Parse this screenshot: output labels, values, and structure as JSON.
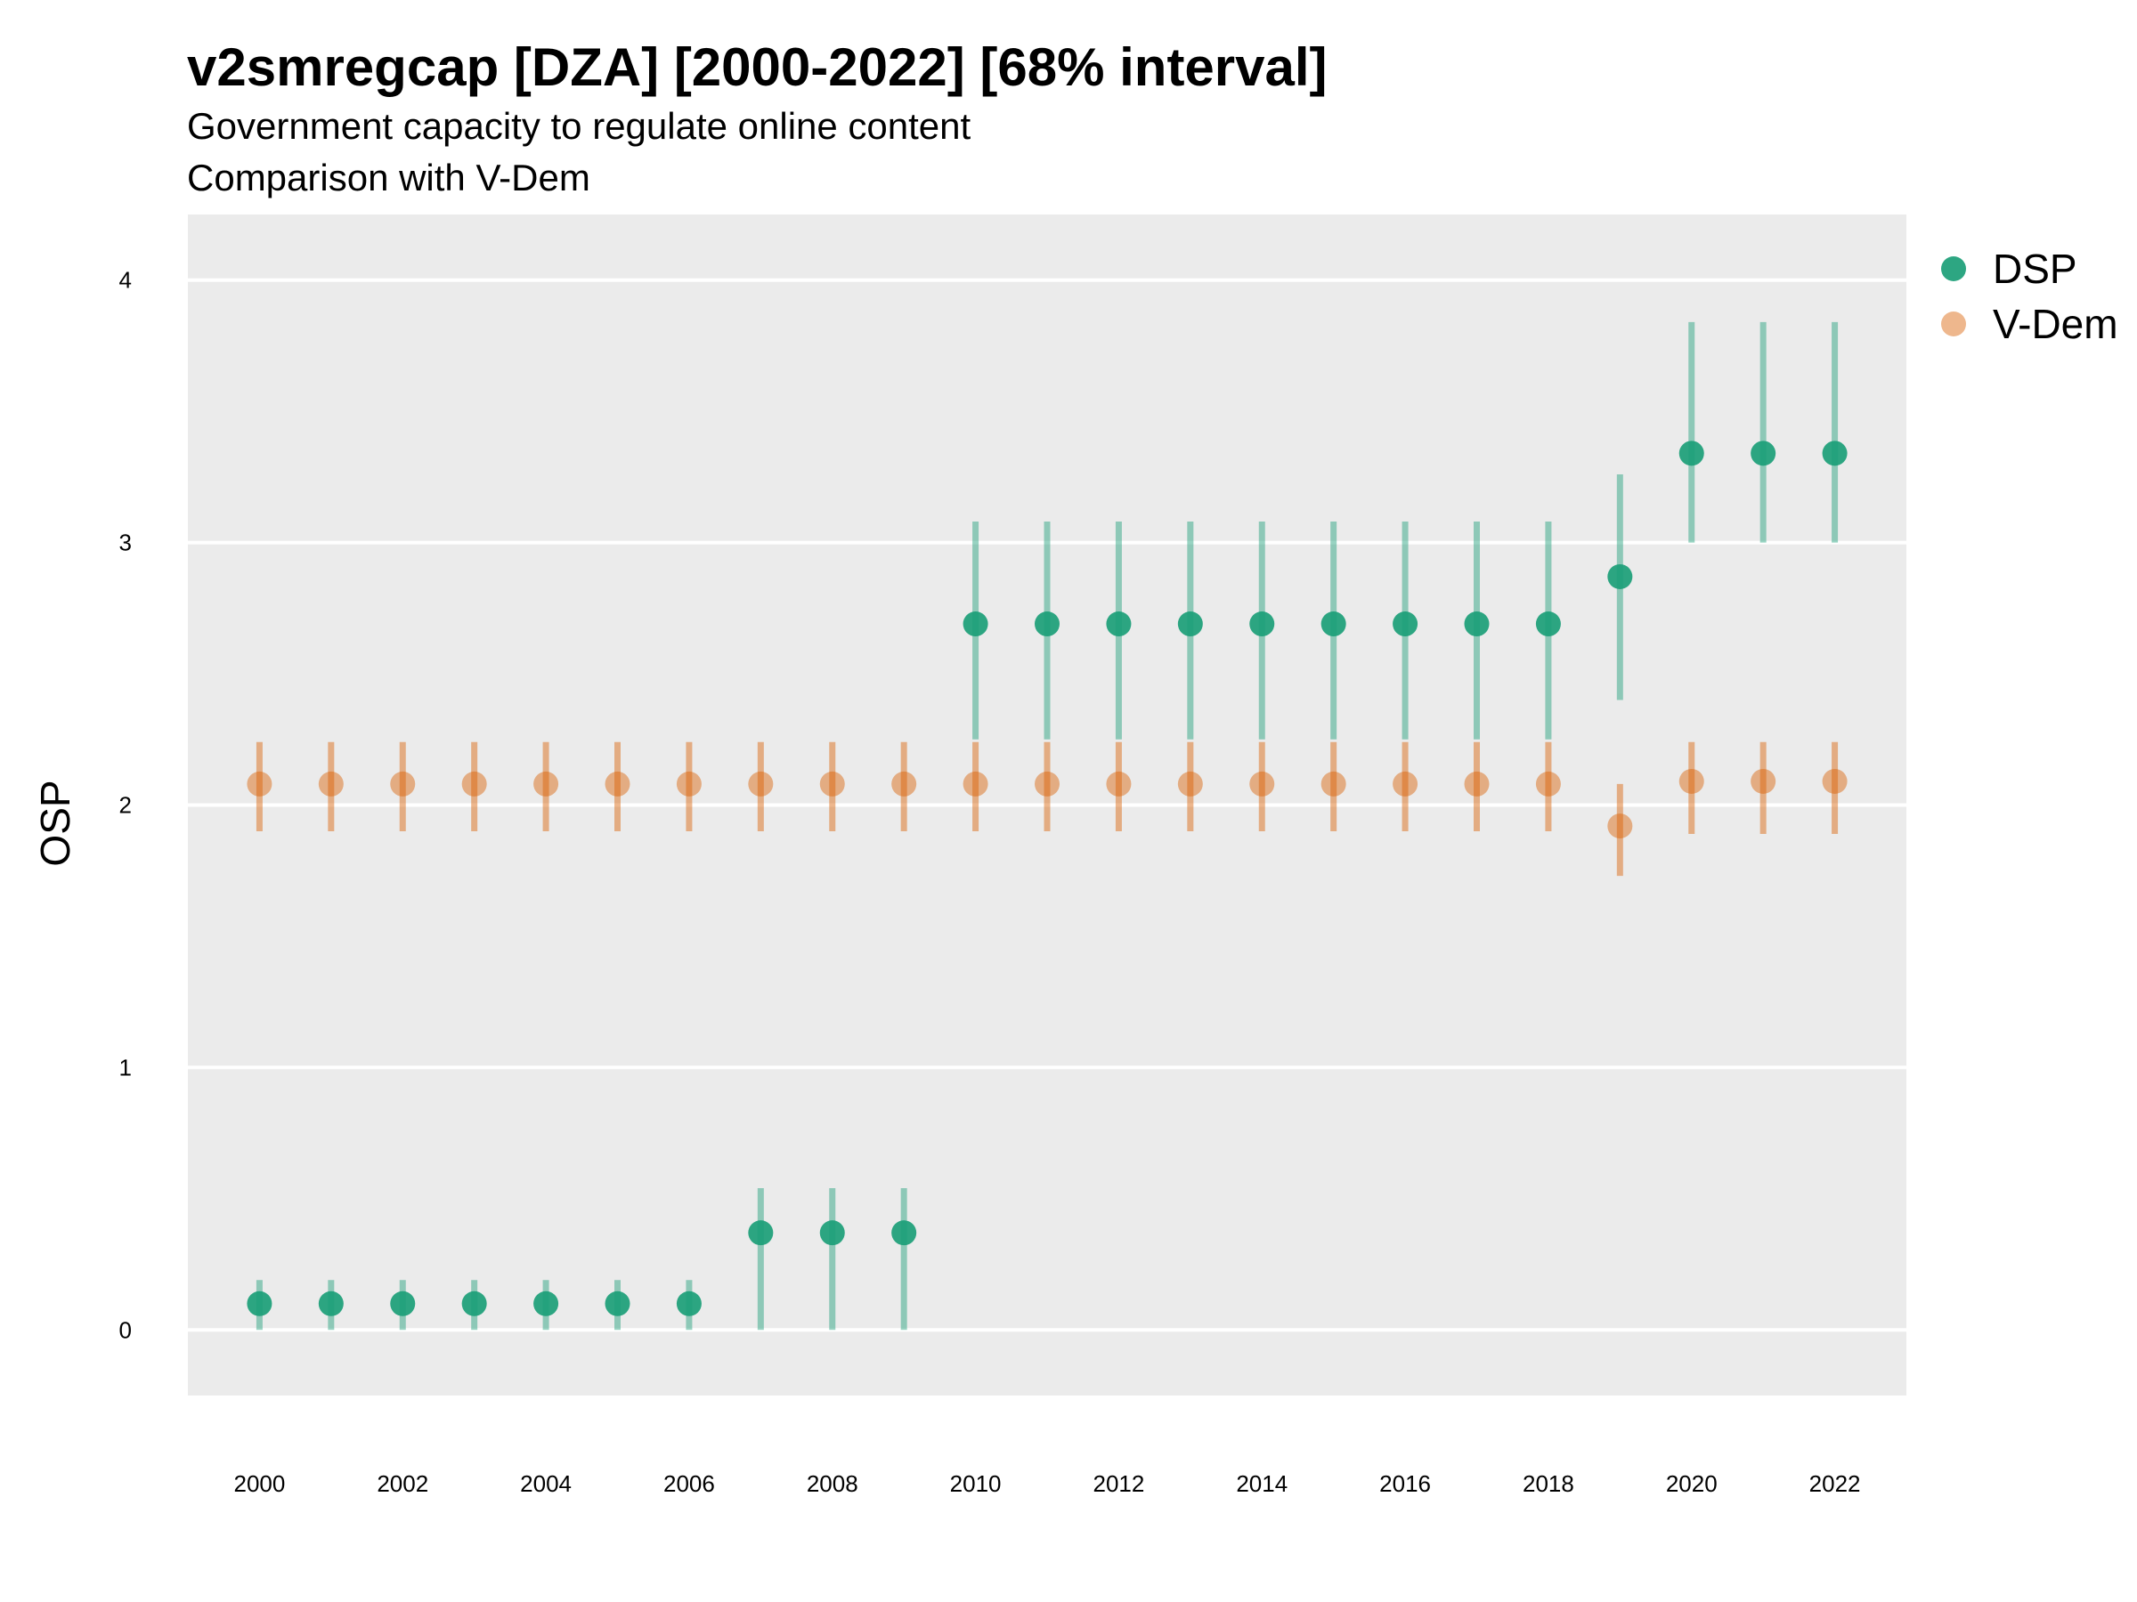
{
  "chart_data": {
    "type": "scatter",
    "title": "v2smregcap [DZA] [2000-2022] [68% interval]",
    "subtitle": "Government capacity to regulate online content",
    "subtitle2": "Comparison with V-Dem",
    "ylabel": "OSP",
    "xlabel": "",
    "x": [
      2000,
      2001,
      2002,
      2003,
      2004,
      2005,
      2006,
      2007,
      2008,
      2009,
      2010,
      2011,
      2012,
      2013,
      2014,
      2015,
      2016,
      2017,
      2018,
      2019,
      2020,
      2021,
      2022
    ],
    "x_ticks": [
      "2000",
      "2002",
      "2004",
      "2006",
      "2008",
      "2010",
      "2012",
      "2014",
      "2016",
      "2018",
      "2020",
      "2022"
    ],
    "x_tick_values": [
      2000,
      2002,
      2004,
      2006,
      2008,
      2010,
      2012,
      2014,
      2016,
      2018,
      2020,
      2022
    ],
    "y_ticks": [
      "0",
      "1",
      "2",
      "3",
      "4"
    ],
    "y_tick_values": [
      0,
      1,
      2,
      3,
      4
    ],
    "xlim": [
      1999,
      2023
    ],
    "ylim": [
      -0.25,
      4.25
    ],
    "grid": "horizontal",
    "legend_position": "right-top",
    "series": [
      {
        "name": "DSP",
        "color": "#1b9e77",
        "values": [
          0.1,
          0.1,
          0.1,
          0.1,
          0.1,
          0.1,
          0.1,
          0.37,
          0.37,
          0.37,
          2.69,
          2.69,
          2.69,
          2.69,
          2.69,
          2.69,
          2.69,
          2.69,
          2.69,
          2.87,
          3.34,
          3.34,
          3.34
        ],
        "lower": [
          0.0,
          0.0,
          0.0,
          0.0,
          0.0,
          0.0,
          0.0,
          0.0,
          0.0,
          0.0,
          2.25,
          2.25,
          2.25,
          2.25,
          2.25,
          2.25,
          2.25,
          2.25,
          2.25,
          2.4,
          3.0,
          3.0,
          3.0
        ],
        "upper": [
          0.19,
          0.19,
          0.19,
          0.19,
          0.19,
          0.19,
          0.19,
          0.54,
          0.54,
          0.54,
          3.08,
          3.08,
          3.08,
          3.08,
          3.08,
          3.08,
          3.08,
          3.08,
          3.08,
          3.26,
          3.84,
          3.84,
          3.84
        ]
      },
      {
        "name": "V-Dem",
        "color": "#d95f02",
        "values": [
          2.08,
          2.08,
          2.08,
          2.08,
          2.08,
          2.08,
          2.08,
          2.08,
          2.08,
          2.08,
          2.08,
          2.08,
          2.08,
          2.08,
          2.08,
          2.08,
          2.08,
          2.08,
          2.08,
          1.92,
          2.09,
          2.09,
          2.09
        ],
        "lower": [
          1.9,
          1.9,
          1.9,
          1.9,
          1.9,
          1.9,
          1.9,
          1.9,
          1.9,
          1.9,
          1.9,
          1.9,
          1.9,
          1.9,
          1.9,
          1.9,
          1.9,
          1.9,
          1.9,
          1.73,
          1.89,
          1.89,
          1.89
        ],
        "upper": [
          2.24,
          2.24,
          2.24,
          2.24,
          2.24,
          2.24,
          2.24,
          2.24,
          2.24,
          2.24,
          2.24,
          2.24,
          2.24,
          2.24,
          2.24,
          2.24,
          2.24,
          2.24,
          2.24,
          2.08,
          2.24,
          2.24,
          2.24
        ]
      }
    ]
  }
}
